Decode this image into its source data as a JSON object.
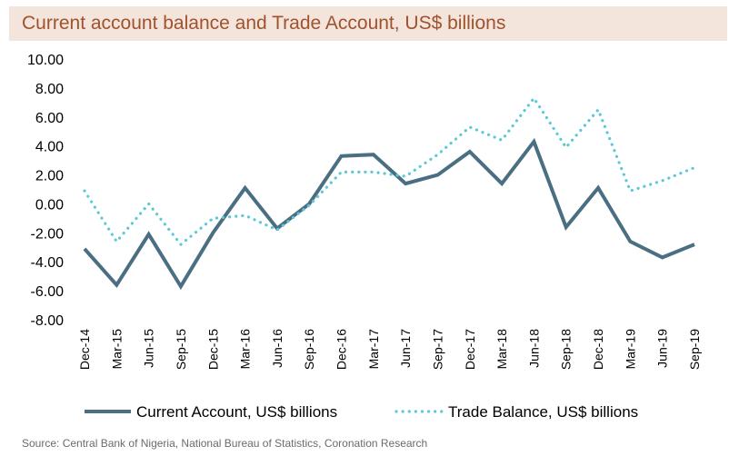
{
  "header": {
    "title": "Current account balance and Trade Account, US$ billions"
  },
  "footer": {
    "source": "Source: Central Bank of Nigeria, National Bureau of Statistics, Coronation Research"
  },
  "colors": {
    "current_account": "#4a6f82",
    "trade_balance": "#5fc8d8",
    "title_text": "#a0522d",
    "title_bg": "#f3e4dc"
  },
  "chart_data": {
    "type": "line",
    "title": "Current account balance and Trade Account, US$ billions",
    "xlabel": "",
    "ylabel": "",
    "ylim": [
      -8,
      10
    ],
    "yticks": [
      10,
      8,
      6,
      4,
      2,
      0,
      -2,
      -4,
      -6,
      -8
    ],
    "ytick_labels": [
      "10.00",
      "8.00",
      "6.00",
      "4.00",
      "2.00",
      "0.00",
      "-2.00",
      "-4.00",
      "-6.00",
      "-8.00"
    ],
    "categories": [
      "Dec-14",
      "Mar-15",
      "Jun-15",
      "Sep-15",
      "Dec-15",
      "Mar-16",
      "Jun-16",
      "Sep-16",
      "Dec-16",
      "Mar-17",
      "Jun-17",
      "Sep-17",
      "Dec-17",
      "Mar-18",
      "Jun-18",
      "Sep-18",
      "Dec-18",
      "Mar-19",
      "Jun-19",
      "Sep-19"
    ],
    "grid": false,
    "legend": "bottom",
    "series": [
      {
        "name": "Current Account, US$ billions",
        "style": "solid",
        "values": [
          -3.1,
          -5.6,
          -2.1,
          -5.7,
          -2.0,
          1.1,
          -1.7,
          0.0,
          3.3,
          3.4,
          1.4,
          2.0,
          3.6,
          1.4,
          4.3,
          -1.6,
          1.1,
          -2.6,
          -3.7,
          -2.8
        ]
      },
      {
        "name": "Trade Balance, US$ billions",
        "style": "dotted",
        "values": [
          0.9,
          -2.6,
          0.0,
          -2.8,
          -1.0,
          -0.8,
          -1.8,
          -0.1,
          2.2,
          2.2,
          1.9,
          3.4,
          5.3,
          4.4,
          7.3,
          3.9,
          6.5,
          0.9,
          1.6,
          2.5
        ]
      }
    ]
  }
}
